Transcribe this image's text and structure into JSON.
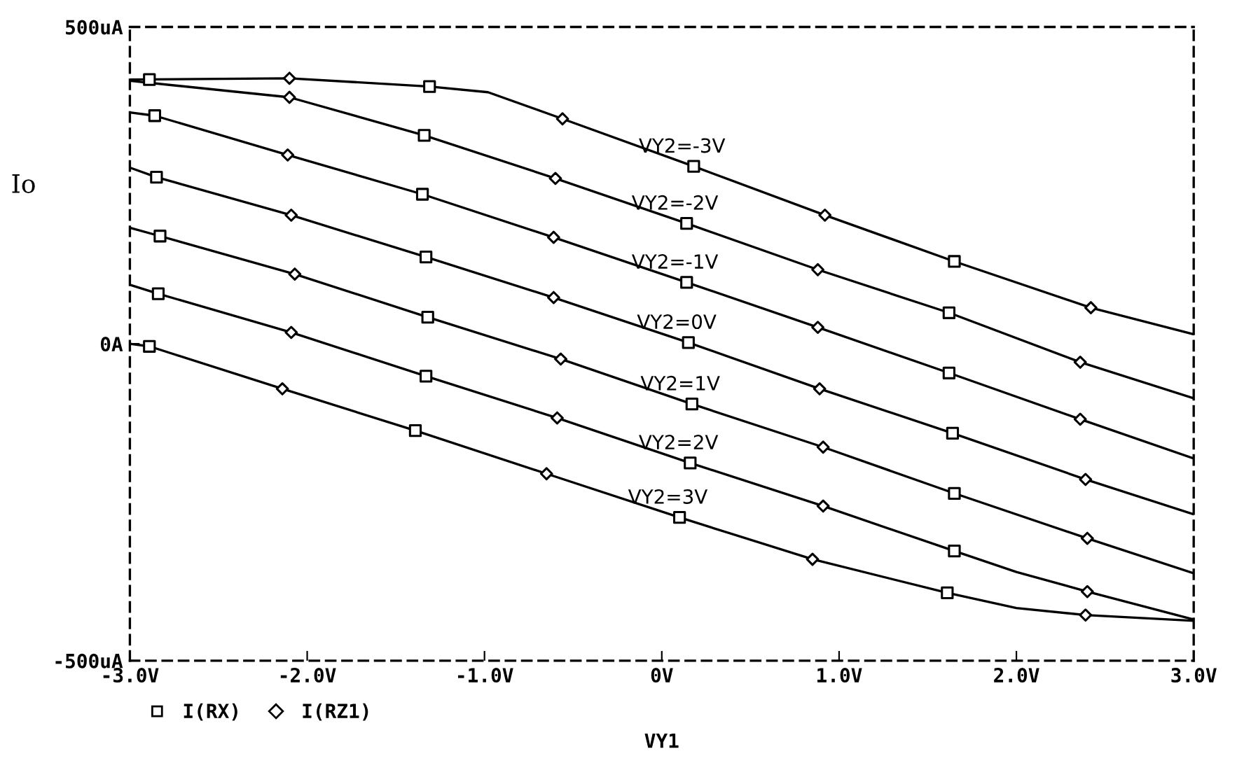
{
  "chart_data": {
    "type": "line",
    "xlabel": "VY1",
    "ylabel": "Io",
    "xlim": [
      -3.0,
      3.0
    ],
    "ylim": [
      -500,
      500
    ],
    "xticks": [
      {
        "value": -3,
        "label": "-3.0V"
      },
      {
        "value": -2,
        "label": "-2.0V"
      },
      {
        "value": -1,
        "label": "-1.0V"
      },
      {
        "value": 0,
        "label": "0V"
      },
      {
        "value": 1,
        "label": "1.0V"
      },
      {
        "value": 2,
        "label": "2.0V"
      },
      {
        "value": 3,
        "label": "3.0V"
      }
    ],
    "yticks": [
      {
        "value": -500,
        "label": "-500uA"
      },
      {
        "value": 0,
        "label": "0A"
      },
      {
        "value": 500,
        "label": "500uA"
      }
    ],
    "grid": false,
    "legend": "bottom left",
    "line_style": "solid",
    "series": [
      {
        "name": "VY2=-3V",
        "color": "#000000",
        "marker": "none",
        "x": [
          -3.0,
          -2.1,
          -1.31,
          -0.98,
          -0.56,
          0.18,
          0.92,
          1.65,
          2.42,
          3.0
        ],
        "values": [
          417,
          419,
          406,
          397,
          355,
          280,
          203,
          130,
          57,
          15
        ]
      },
      {
        "name": "VY2=-2V",
        "color": "#000000",
        "marker": "none",
        "x": [
          -3.0,
          -2.1,
          -1.34,
          -0.6,
          0.14,
          0.88,
          1.62,
          2.36,
          3.0
        ],
        "values": [
          415,
          389,
          329,
          261,
          190,
          117,
          49,
          -29,
          -86
        ]
      },
      {
        "name": "VY2=-1V",
        "color": "#000000",
        "marker": "none",
        "x": [
          -3.0,
          -2.86,
          -2.11,
          -1.35,
          -0.61,
          0.14,
          0.88,
          1.62,
          2.36,
          3.0
        ],
        "values": [
          365,
          360,
          298,
          236,
          168,
          97,
          26,
          -46,
          -119,
          -181
        ]
      },
      {
        "name": "VY2=0V",
        "color": "#000000",
        "marker": "none",
        "x": [
          -3.0,
          -2.85,
          -2.09,
          -1.33,
          -0.61,
          0.15,
          0.89,
          1.64,
          2.39,
          3.0
        ],
        "values": [
          278,
          263,
          203,
          137,
          73,
          2,
          -71,
          -141,
          -214,
          -269
        ]
      },
      {
        "name": "VY2=1V",
        "color": "#000000",
        "marker": "none",
        "x": [
          -3.0,
          -2.83,
          -2.07,
          -1.32,
          -0.57,
          0.17,
          0.91,
          1.65,
          2.4,
          3.0
        ],
        "values": [
          183,
          170,
          110,
          42,
          -24,
          -95,
          -163,
          -236,
          -307,
          -362
        ]
      },
      {
        "name": "VY2=2V",
        "color": "#000000",
        "marker": "none",
        "x": [
          -3.0,
          -2.84,
          -2.09,
          -1.33,
          -0.59,
          0.16,
          0.91,
          1.65,
          2.0,
          2.4,
          3.0
        ],
        "values": [
          93,
          79,
          18,
          -51,
          -117,
          -188,
          -256,
          -327,
          -360,
          -391,
          -435
        ]
      },
      {
        "name": "VY2=3V",
        "color": "#000000",
        "marker": "none",
        "x": [
          -3.0,
          -2.89,
          -2.14,
          -1.39,
          -0.65,
          0.1,
          0.85,
          1.61,
          2.0,
          2.39,
          3.0
        ],
        "values": [
          0,
          -4,
          -71,
          -137,
          -205,
          -274,
          -340,
          -393,
          -417,
          -428,
          -437
        ]
      },
      {
        "type": "scatter",
        "name": "I(RX)",
        "color": "#000000",
        "marker": "square",
        "x": [
          -2.89,
          -1.31,
          0.18,
          1.65,
          0.14,
          -1.34,
          1.62,
          -2.86,
          -1.35,
          0.14,
          1.62,
          -2.85,
          -1.33,
          0.15,
          1.64,
          -2.83,
          -1.32,
          0.17,
          1.65,
          -2.84,
          -1.33,
          0.16,
          1.65,
          -2.89,
          -1.39,
          0.1,
          1.61
        ],
        "values": [
          417,
          406,
          280,
          130,
          190,
          329,
          49,
          360,
          236,
          97,
          -46,
          263,
          137,
          2,
          -141,
          170,
          42,
          -95,
          -236,
          79,
          -51,
          -188,
          -327,
          -4,
          -137,
          -274,
          -393
        ]
      },
      {
        "type": "scatter",
        "name": "I(RZ1)",
        "color": "#000000",
        "marker": "diamond",
        "x": [
          -2.1,
          -0.56,
          0.92,
          2.42,
          -2.1,
          -0.6,
          0.88,
          2.36,
          -2.11,
          -0.61,
          0.88,
          2.36,
          -2.09,
          -0.61,
          0.89,
          2.39,
          -2.07,
          -0.57,
          0.91,
          2.4,
          -2.09,
          -0.59,
          0.91,
          2.4,
          -2.14,
          -0.65,
          0.85,
          2.39
        ],
        "values": [
          419,
          355,
          203,
          57,
          389,
          261,
          117,
          -29,
          298,
          168,
          26,
          -119,
          203,
          73,
          -71,
          -214,
          110,
          -24,
          -163,
          -307,
          18,
          -117,
          -256,
          -391,
          -71,
          -205,
          -340,
          -428
        ]
      }
    ]
  }
}
